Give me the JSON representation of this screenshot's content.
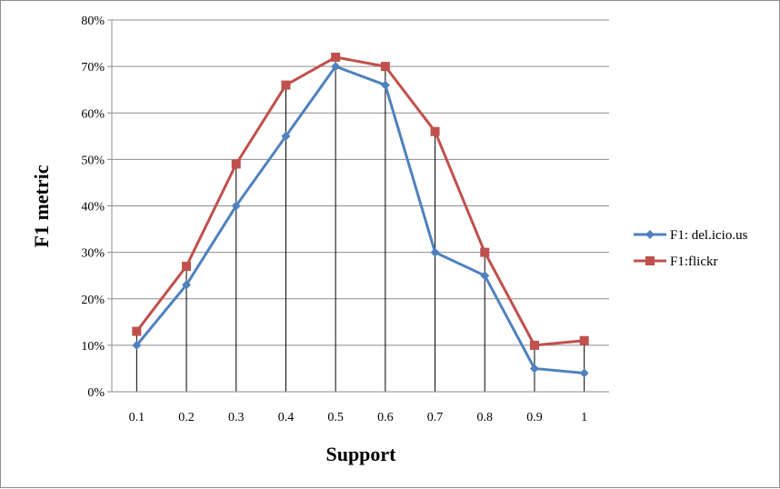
{
  "chart_data": {
    "type": "line",
    "title": "",
    "xlabel": "Support",
    "ylabel": "F1 metric",
    "categories": [
      "0.1",
      "0.2",
      "0.3",
      "0.4",
      "0.5",
      "0.6",
      "0.7",
      "0.8",
      "0.9",
      "1"
    ],
    "y_ticks": [
      "0%",
      "10%",
      "20%",
      "30%",
      "40%",
      "50%",
      "60%",
      "70%",
      "80%"
    ],
    "ylim": [
      0,
      80
    ],
    "grid": true,
    "legend_position": "right",
    "series": [
      {
        "name": "F1: del.icio.us",
        "color": "#4f81bd",
        "marker": "diamond",
        "values": [
          10,
          23,
          40,
          55,
          70,
          66,
          30,
          25,
          5,
          4
        ]
      },
      {
        "name": "F1:flickr",
        "color": "#c0504d",
        "marker": "square",
        "values": [
          13,
          27,
          49,
          66,
          72,
          70,
          56,
          30,
          10,
          11
        ]
      }
    ]
  }
}
